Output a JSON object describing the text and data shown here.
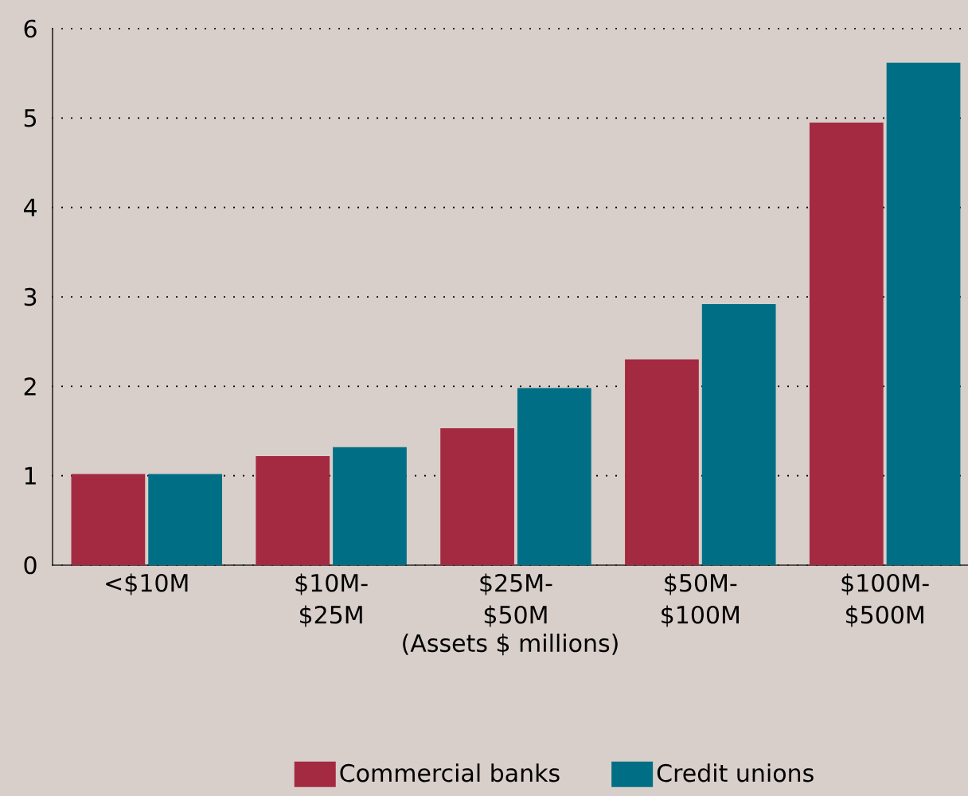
{
  "chart_data": {
    "type": "bar",
    "xlabel": "(Assets $ millions)",
    "categories": [
      "<$10M",
      "$10M- $25M",
      "$25M- $50M",
      "$50M- $100M",
      "$100M- $500M"
    ],
    "series": [
      {
        "name": "Commercial banks",
        "color": "#a32a41",
        "values": [
          1.02,
          1.22,
          1.53,
          2.3,
          4.95
        ]
      },
      {
        "name": "Credit unions",
        "color": "#006f85",
        "values": [
          1.02,
          1.32,
          1.98,
          2.92,
          5.62
        ]
      }
    ],
    "ylim": [
      0,
      6
    ],
    "yticks": [
      0,
      1,
      2,
      3,
      4,
      5,
      6
    ],
    "grid": "y",
    "legend": "bottom"
  }
}
